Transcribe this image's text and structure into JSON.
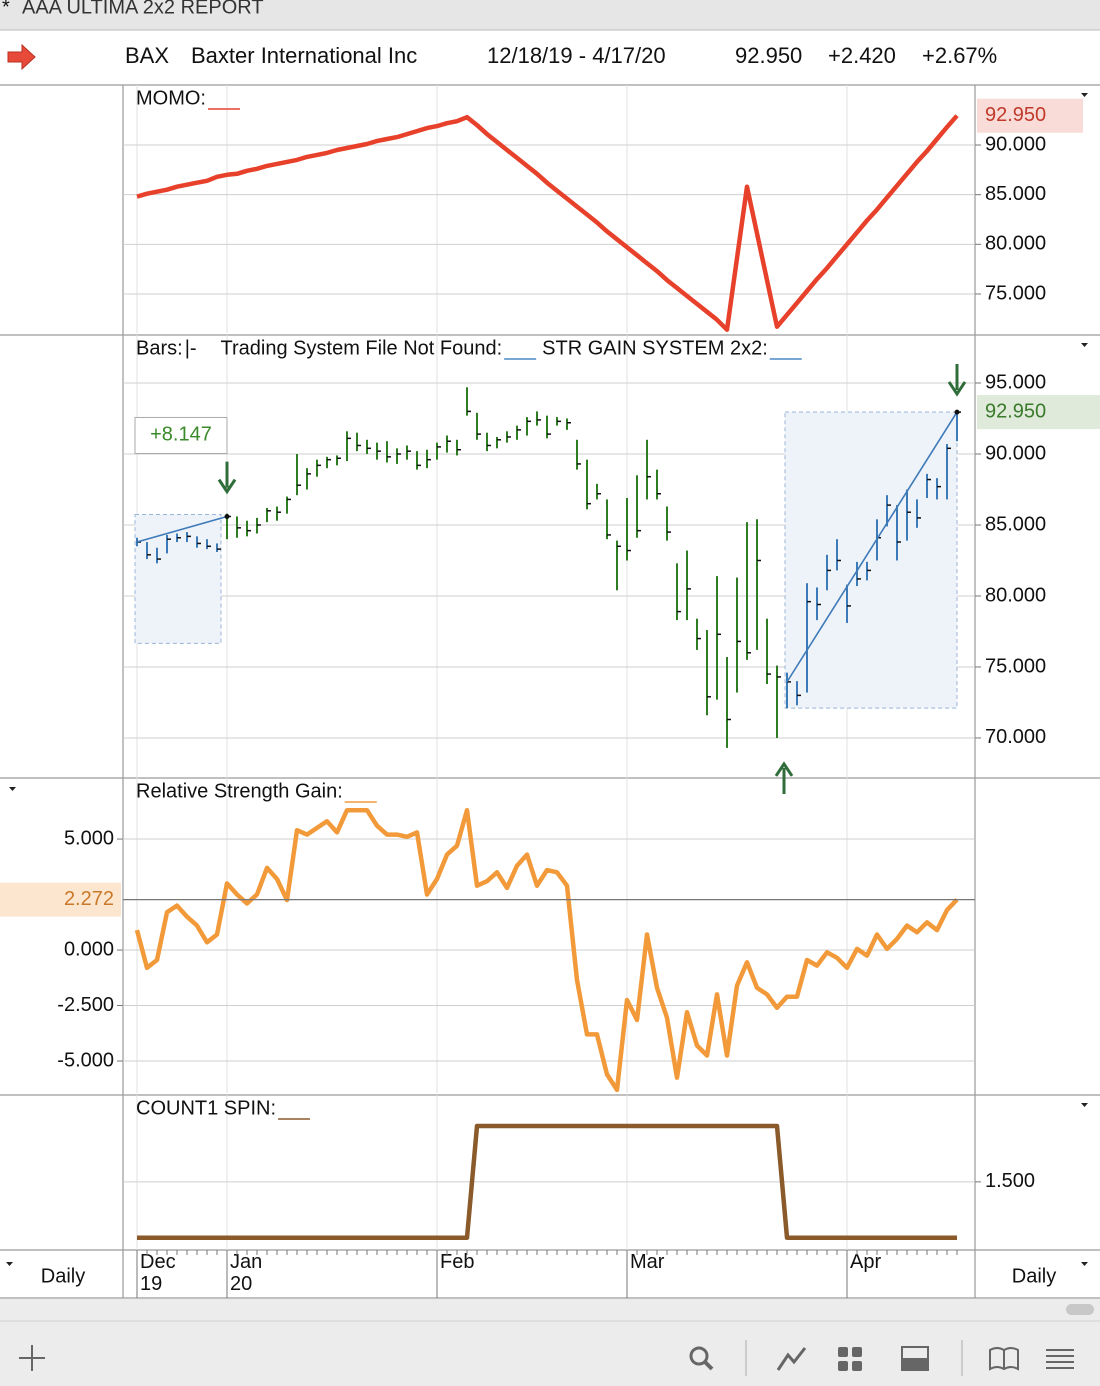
{
  "header": {
    "marker": "*",
    "title": "AAA ULTIMA 2x2 REPORT",
    "symbol": "BAX",
    "company": "Baxter International Inc",
    "date_range": "12/18/19 - 4/17/20",
    "last": "92.950",
    "change": "+2.420",
    "percent": "+2.67%"
  },
  "footer": {
    "left": "Daily",
    "right": "Daily"
  },
  "chart_data": [
    {
      "type": "line",
      "series": [
        {
          "name": "MOMO:",
          "color": "#e8412b",
          "values": [
            84.8,
            85.1,
            85.3,
            85.5,
            85.8,
            86.0,
            86.2,
            86.4,
            86.8,
            87.0,
            87.1,
            87.4,
            87.6,
            87.9,
            88.1,
            88.3,
            88.5,
            88.8,
            89.0,
            89.2,
            89.5,
            89.7,
            89.9,
            90.1,
            90.4,
            90.6,
            90.8,
            91.1,
            91.4,
            91.7,
            91.9,
            92.2,
            92.4,
            92.8,
            92.0,
            91.1,
            90.3,
            89.5,
            88.7,
            87.9,
            87.1,
            86.2,
            85.4,
            84.6,
            83.8,
            83.0,
            82.2,
            81.3,
            80.5,
            79.7,
            78.9,
            78.1,
            77.3,
            76.4,
            75.6,
            74.8,
            74.0,
            73.2,
            72.4,
            71.4,
            78.6,
            85.8,
            81.1,
            76.4,
            71.7,
            72.9,
            74.1,
            75.3,
            76.5,
            77.6,
            78.8,
            80.0,
            81.2,
            82.4,
            83.5,
            84.7,
            85.9,
            87.1,
            88.3,
            89.4,
            90.6,
            91.8,
            92.95
          ]
        }
      ],
      "ylim": [
        71.07,
        95.84
      ],
      "yticks": [
        {
          "value": 75,
          "label": "75.000"
        },
        {
          "value": 80,
          "label": "80.000"
        },
        {
          "value": 85,
          "label": "85.000"
        },
        {
          "value": 90,
          "label": "90.000"
        }
      ],
      "grid": true,
      "last_value_label": "92.950",
      "axis_side": "right"
    },
    {
      "type": "hlc",
      "legend": "Bars:",
      "bar_style": "|-",
      "color": "#2e7d22",
      "system_color": "#3d7ab8",
      "systems": [
        {
          "name": "Trading System File Not Found:",
          "color": "#4a8ac4"
        },
        {
          "name": "STR GAIN SYSTEM 2x2:",
          "color": "#4a8ac4"
        }
      ],
      "high": [
        84.1,
        83.8,
        83.4,
        84.3,
        84.4,
        84.5,
        84.2,
        84.0,
        83.7,
        85.8,
        85.6,
        85.3,
        85.5,
        86.2,
        86.3,
        87.0,
        90.0,
        89.0,
        89.6,
        89.8,
        89.9,
        91.6,
        91.5,
        91.0,
        90.8,
        90.9,
        90.4,
        90.6,
        90.2,
        90.3,
        90.8,
        91.3,
        91.0,
        94.7,
        92.9,
        91.5,
        91.2,
        91.6,
        92.0,
        92.6,
        93.0,
        92.7,
        92.6,
        92.5,
        91.0,
        89.6,
        87.9,
        86.8,
        83.9,
        86.9,
        88.5,
        91.0,
        88.9,
        86.3,
        82.3,
        83.2,
        78.4,
        77.6,
        81.4,
        75.7,
        81.3,
        85.2,
        85.4,
        78.4,
        75.1,
        74.6,
        74.0,
        80.9,
        80.6,
        82.9,
        84.0,
        80.8,
        82.4,
        82.4,
        85.4,
        87.1,
        86.4,
        87.5,
        86.8,
        88.6,
        88.3,
        90.7,
        93.1
      ],
      "low": [
        83.5,
        82.6,
        82.3,
        83.0,
        83.8,
        83.8,
        83.4,
        83.3,
        83.1,
        84.0,
        84.1,
        84.2,
        84.4,
        85.2,
        85.3,
        85.8,
        87.1,
        87.5,
        88.4,
        89.0,
        89.2,
        89.5,
        90.2,
        90.0,
        89.6,
        89.4,
        89.3,
        89.6,
        88.9,
        89.0,
        89.6,
        90.1,
        89.9,
        92.7,
        91.0,
        90.2,
        90.4,
        90.8,
        91.0,
        91.3,
        92.0,
        91.1,
        92.0,
        91.7,
        88.9,
        86.1,
        86.8,
        84.0,
        80.4,
        82.5,
        84.1,
        86.8,
        86.8,
        83.9,
        78.3,
        78.3,
        76.2,
        71.6,
        72.7,
        69.3,
        73.2,
        75.5,
        76.2,
        73.8,
        70.0,
        72.1,
        72.3,
        73.2,
        78.3,
        80.4,
        81.8,
        78.1,
        80.7,
        81.1,
        82.5,
        84.9,
        82.5,
        83.9,
        84.8,
        86.9,
        86.8,
        86.8,
        90.9
      ],
      "close": [
        83.8,
        82.9,
        82.6,
        84.0,
        84.1,
        84.2,
        83.7,
        83.5,
        83.3,
        85.6,
        84.8,
        84.6,
        85.0,
        86.0,
        85.9,
        86.8,
        87.8,
        88.6,
        89.2,
        89.6,
        89.7,
        91.1,
        90.6,
        90.4,
        90.2,
        89.8,
        90.0,
        90.2,
        89.2,
        89.6,
        90.5,
        90.9,
        90.3,
        93.0,
        91.4,
        90.6,
        91.0,
        91.2,
        91.7,
        92.3,
        92.4,
        91.4,
        92.3,
        92.2,
        89.3,
        86.5,
        87.2,
        84.3,
        83.5,
        83.2,
        84.6,
        88.4,
        87.2,
        84.5,
        78.9,
        80.5,
        77.0,
        72.9,
        77.3,
        71.3,
        76.8,
        76.0,
        82.5,
        74.5,
        74.3,
        73.95,
        73.0,
        79.6,
        79.4,
        81.8,
        82.5,
        79.3,
        81.2,
        81.8,
        84.1,
        86.4,
        83.8,
        85.9,
        85.5,
        88.2,
        87.7,
        90.4,
        92.95
      ],
      "gain_label": "+8.147",
      "ylim": [
        67.18,
        98.24
      ],
      "yticks": [
        {
          "value": 70,
          "label": "70.000"
        },
        {
          "value": 75,
          "label": "75.000"
        },
        {
          "value": 80,
          "label": "80.000"
        },
        {
          "value": 85,
          "label": "85.000"
        },
        {
          "value": 90,
          "label": "90.000"
        },
        {
          "value": 95,
          "label": "95.000"
        }
      ],
      "grid": true,
      "last_value_label": "92.950",
      "axis_side": "right"
    },
    {
      "type": "line",
      "series": [
        {
          "name": "Relative Strength Gain:",
          "color": "#f29a3a",
          "values": [
            0.9,
            -0.8,
            -0.45,
            1.7,
            2.0,
            1.5,
            1.1,
            0.35,
            0.7,
            3.0,
            2.5,
            2.1,
            2.5,
            3.7,
            3.2,
            2.25,
            5.4,
            5.2,
            5.5,
            5.8,
            5.3,
            6.3,
            6.3,
            6.3,
            5.6,
            5.2,
            5.2,
            5.1,
            5.3,
            2.5,
            3.2,
            4.3,
            4.7,
            6.3,
            2.9,
            3.1,
            3.5,
            2.8,
            3.8,
            4.3,
            2.9,
            3.6,
            3.5,
            2.9,
            -1.35,
            -3.8,
            -3.8,
            -5.6,
            -6.3,
            -2.25,
            -3.15,
            0.7,
            -1.7,
            -3.05,
            -5.75,
            -2.8,
            -4.3,
            -4.75,
            -2.0,
            -4.75,
            -1.6,
            -0.55,
            -1.7,
            -2.0,
            -2.6,
            -2.1,
            -2.1,
            -0.45,
            -0.7,
            -0.1,
            -0.35,
            -0.8,
            0.05,
            -0.25,
            0.7,
            0.05,
            0.5,
            1.1,
            0.8,
            1.25,
            0.9,
            1.8,
            2.272
          ]
        }
      ],
      "ylim": [
        -6.44,
        7.66
      ],
      "yticks": [
        {
          "value": -5,
          "label": "-5.000"
        },
        {
          "value": -2.5,
          "label": "-2.500"
        },
        {
          "value": 0,
          "label": "0.000"
        },
        {
          "value": 5,
          "label": "5.000"
        }
      ],
      "grid": true,
      "last_value_label": "2.272",
      "axis_side": "left"
    },
    {
      "type": "line",
      "series": [
        {
          "name": "COUNT1 SPIN:",
          "color": "#8a5a2a",
          "values": [
            1,
            1,
            1,
            1,
            1,
            1,
            1,
            1,
            1,
            1,
            1,
            1,
            1,
            1,
            1,
            1,
            1,
            1,
            1,
            1,
            1,
            1,
            1,
            1,
            1,
            1,
            1,
            1,
            1,
            1,
            1,
            1,
            1,
            1,
            2,
            2,
            2,
            2,
            2,
            2,
            2,
            2,
            2,
            2,
            2,
            2,
            2,
            2,
            2,
            2,
            2,
            2,
            2,
            2,
            2,
            2,
            2,
            2,
            2,
            2,
            2,
            2,
            2,
            2,
            2,
            1,
            1,
            1,
            1,
            1,
            1,
            1,
            1,
            1,
            1,
            1,
            1,
            1,
            1,
            1,
            1,
            1,
            1
          ]
        }
      ],
      "ylim": [
        0.89,
        2.26
      ],
      "yticks": [
        {
          "value": 1.5,
          "label": "1.500"
        }
      ],
      "grid": true,
      "axis_side": "right",
      "categories": [
        "Dec 19",
        null,
        null,
        null,
        null,
        null,
        null,
        null,
        null,
        "Jan 20",
        null,
        null,
        null,
        null,
        null,
        null,
        null,
        null,
        null,
        null,
        null,
        null,
        null,
        null,
        null,
        null,
        null,
        null,
        null,
        null,
        "Feb",
        null,
        null,
        null,
        null,
        null,
        null,
        null,
        null,
        null,
        null,
        null,
        null,
        null,
        null,
        null,
        null,
        null,
        null,
        "Mar",
        null,
        null,
        null,
        null,
        null,
        null,
        null,
        null,
        null,
        null,
        null,
        null,
        null,
        null,
        null,
        null,
        null,
        null,
        null,
        null,
        null,
        "Apr",
        null,
        null,
        null,
        null,
        null,
        null,
        null,
        null,
        null,
        null,
        null
      ]
    }
  ]
}
